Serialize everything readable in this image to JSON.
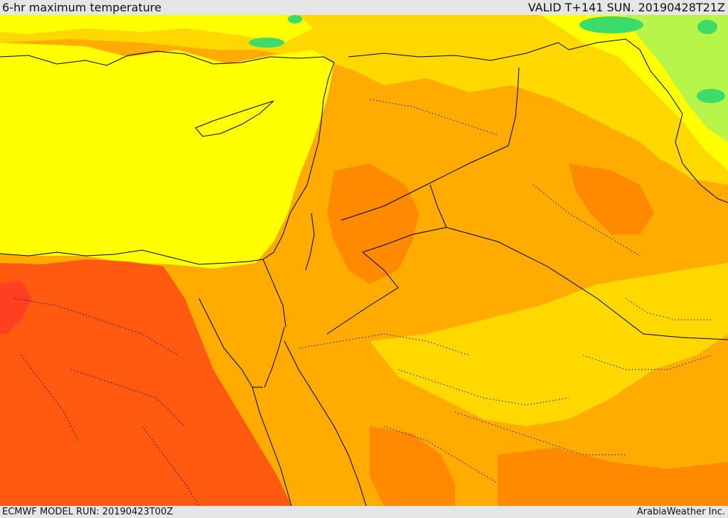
{
  "header": {
    "title": "6-hr maximum temperature",
    "valid_time": "VALID T+141 SUN. 20190428T21Z"
  },
  "footer": {
    "model_run": "ECMWF MODEL RUN: 20190423T00Z",
    "credit": "ArabiaWeather Inc."
  },
  "map": {
    "variable": "6-hr maximum temperature",
    "colors": {
      "green": "#3ddc6a",
      "light_green": "#b8f54a",
      "yellow": "#ffff00",
      "gold": "#ffd800",
      "orange": "#ffab00",
      "dark_orange": "#ff8a00",
      "red_orange": "#ff5a10",
      "coast": "#000000"
    }
  }
}
